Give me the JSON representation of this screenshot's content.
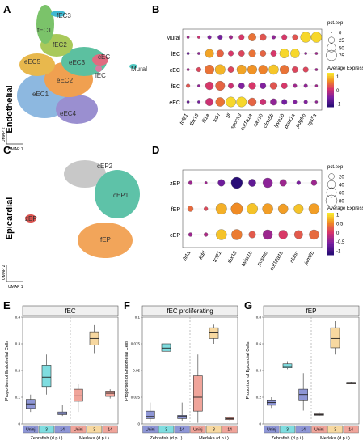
{
  "panel_letters": [
    "A",
    "B",
    "C",
    "D",
    "E",
    "F",
    "G"
  ],
  "umap_axis_labels": {
    "x": "UMAP 1",
    "y": "UMAP 2"
  },
  "panel_a": {
    "ylabel": "Endothelial",
    "clusters": [
      {
        "name": "fEC3",
        "color": "#3fb8d0"
      },
      {
        "name": "fEC1",
        "color": "#7bc36a"
      },
      {
        "name": "fEC2",
        "color": "#a9c95a"
      },
      {
        "name": "eEC5",
        "color": "#e8b84d"
      },
      {
        "name": "eEC3",
        "color": "#5cc0a0"
      },
      {
        "name": "eEC2",
        "color": "#f0a050"
      },
      {
        "name": "eEC1",
        "color": "#8db8e0"
      },
      {
        "name": "eEC4",
        "color": "#9a8fd0"
      },
      {
        "name": "cEC",
        "color": "#e06b80"
      },
      {
        "name": "lEC",
        "color": "#d87aa0"
      },
      {
        "name": "Mural",
        "color": "#4ec7c0"
      }
    ]
  },
  "panel_c": {
    "ylabel": "Epicardial",
    "clusters": [
      {
        "name": "cEP2",
        "color": "#c8c8c8"
      },
      {
        "name": "cEP1",
        "color": "#5ec2a8"
      },
      {
        "name": "fEP",
        "color": "#f2a55a"
      },
      {
        "name": "zEP",
        "color": "#d9534f"
      }
    ]
  },
  "chart_data": [
    {
      "panel": "B",
      "type": "dotplot",
      "rows": [
        "Mural",
        "lEC",
        "cEC",
        "fEC",
        "eEC"
      ],
      "genes": [
        "tcf21",
        "tbx18",
        "fli1a",
        "kdrl",
        "tll",
        "spock3",
        "col1a1a",
        "cav1b",
        "cldn5b",
        "lyve1b",
        "prox1a",
        "pdgfrb",
        "rgs5a"
      ],
      "avg_expression": [
        [
          -0.2,
          0.1,
          -0.4,
          -0.5,
          -0.2,
          0.2,
          0.6,
          0.4,
          -0.3,
          0.2,
          0.4,
          1.2,
          1.2
        ],
        [
          -0.6,
          -0.3,
          0.9,
          0.5,
          0.2,
          0.3,
          0.6,
          0.5,
          0.2,
          1.2,
          1.2,
          -0.3,
          -0.2
        ],
        [
          -0.2,
          0.3,
          0.6,
          1.0,
          0.3,
          0.9,
          0.8,
          0.7,
          1.1,
          0.6,
          0.3,
          0.3,
          -0.2
        ],
        [
          0.4,
          -0.3,
          0.2,
          0.5,
          0.1,
          -0.4,
          0.2,
          -0.4,
          0.4,
          0.2,
          -0.2,
          -0.3,
          -0.2
        ],
        [
          -0.6,
          -0.5,
          0.1,
          0.6,
          1.2,
          1.2,
          0.5,
          0.1,
          -0.3,
          -0.5,
          -0.4,
          -0.4,
          -0.3
        ]
      ],
      "pct_exp": [
        [
          5,
          5,
          10,
          15,
          10,
          20,
          40,
          30,
          10,
          20,
          20,
          75,
          75
        ],
        [
          5,
          5,
          50,
          35,
          20,
          25,
          35,
          25,
          25,
          60,
          55,
          5,
          5
        ],
        [
          5,
          15,
          60,
          70,
          25,
          60,
          60,
          55,
          65,
          55,
          25,
          20,
          5
        ],
        [
          10,
          5,
          45,
          60,
          20,
          25,
          35,
          25,
          35,
          25,
          10,
          10,
          5
        ],
        [
          5,
          5,
          40,
          55,
          70,
          70,
          45,
          25,
          30,
          20,
          10,
          10,
          5
        ]
      ],
      "size_legend": {
        "title": "pct.exp",
        "values": [
          0,
          25,
          50,
          75
        ]
      },
      "color_legend": {
        "title": "Average Expression",
        "ticks": [
          1,
          0,
          -1
        ],
        "range": [
          -1.2,
          1.3
        ]
      }
    },
    {
      "panel": "D",
      "type": "dotplot",
      "rows": [
        "zEP",
        "fEP",
        "cEP"
      ],
      "genes": [
        "fli1a",
        "kdrl",
        "tcf21",
        "tbx18",
        "twist1b",
        "postnb",
        "col12a1b",
        "cldnc",
        "jam2b"
      ],
      "avg_expression": [
        [
          -0.3,
          -0.3,
          -0.6,
          -1.1,
          -0.7,
          -0.4,
          -0.3,
          -0.5,
          -0.3
        ],
        [
          0.4,
          0.2,
          0.8,
          0.6,
          0.9,
          0.7,
          0.7,
          0.9,
          0.7
        ],
        [
          -0.3,
          -0.2,
          0.9,
          0.5,
          0.3,
          -0.3,
          0.1,
          0.3,
          0.4
        ]
      ],
      "pct_exp": [
        [
          10,
          5,
          30,
          80,
          35,
          60,
          30,
          10,
          20
        ],
        [
          20,
          10,
          75,
          85,
          75,
          70,
          60,
          55,
          70
        ],
        [
          10,
          10,
          70,
          70,
          30,
          60,
          50,
          45,
          60
        ]
      ],
      "size_legend": {
        "title": "pct.exp",
        "values": [
          20,
          40,
          60,
          80
        ]
      },
      "color_legend": {
        "title": "Average Expression",
        "ticks": [
          1.0,
          0.5,
          0.0,
          -0.5,
          -1.0
        ],
        "range": [
          -1.2,
          1.1
        ]
      }
    },
    {
      "panel": "E",
      "type": "boxplot",
      "title": "fEC",
      "ylabel": "Proportion of Endothelial Cells",
      "ylim": [
        0,
        0.4
      ],
      "yticks": [
        0,
        0.1,
        0.2,
        0.3,
        0.4
      ],
      "categories": [
        "Uninj",
        "3",
        "14",
        "Uninj",
        "3",
        "14"
      ],
      "groups": [
        "Zebrafish (d.p.i.)",
        "Medaka (d.p.i.)"
      ],
      "boxes": [
        {
          "min": 0.045,
          "q1": 0.058,
          "median": 0.075,
          "q3": 0.092,
          "max": 0.11,
          "color": "#8e96d6"
        },
        {
          "min": 0.11,
          "q1": 0.14,
          "median": 0.175,
          "q3": 0.22,
          "max": 0.26,
          "color": "#7fdde0"
        },
        {
          "min": 0.03,
          "q1": 0.035,
          "median": 0.04,
          "q3": 0.045,
          "max": 0.07,
          "color": "#8e96d6"
        },
        {
          "min": 0.045,
          "q1": 0.085,
          "median": 0.105,
          "q3": 0.13,
          "max": 0.15,
          "color": "#f0a49a"
        },
        {
          "min": 0.265,
          "q1": 0.295,
          "median": 0.32,
          "q3": 0.345,
          "max": 0.37,
          "color": "#f7d8a0"
        },
        {
          "min": 0.095,
          "q1": 0.103,
          "median": 0.115,
          "q3": 0.123,
          "max": 0.13,
          "color": "#f0a49a"
        }
      ]
    },
    {
      "panel": "F",
      "type": "boxplot",
      "title": "fEC proliferating",
      "ylabel": "Proportion of Endothelial Cells",
      "ylim": [
        0,
        0.1
      ],
      "yticks": [
        0,
        0.025,
        0.05,
        0.075,
        0.1
      ],
      "categories": [
        "Uninj",
        "3",
        "14",
        "Uninj",
        "3",
        "14"
      ],
      "groups": [
        "Zebrafish (d.p.i.)",
        "Medaka (d.p.i.)"
      ],
      "boxes": [
        {
          "min": 0.002,
          "q1": 0.005,
          "median": 0.007,
          "q3": 0.012,
          "max": 0.02,
          "color": "#8e96d6"
        },
        {
          "min": 0.068,
          "q1": 0.068,
          "median": 0.071,
          "q3": 0.075,
          "max": 0.075,
          "color": "#7fdde0"
        },
        {
          "min": 0.003,
          "q1": 0.005,
          "median": 0.007,
          "q3": 0.008,
          "max": 0.02,
          "color": "#8e96d6"
        },
        {
          "min": 0.001,
          "q1": 0.012,
          "median": 0.025,
          "q3": 0.045,
          "max": 0.065,
          "color": "#f0a49a"
        },
        {
          "min": 0.075,
          "q1": 0.08,
          "median": 0.086,
          "q3": 0.09,
          "max": 0.093,
          "color": "#f7d8a0"
        },
        {
          "min": 0.003,
          "q1": 0.004,
          "median": 0.005,
          "q3": 0.006,
          "max": 0.007,
          "color": "#f0a49a"
        }
      ]
    },
    {
      "panel": "G",
      "type": "boxplot",
      "title": "fEP",
      "ylabel": "Proportion of Epicardial Cells",
      "ylim": [
        0,
        0.8
      ],
      "yticks": [
        0,
        0.2,
        0.4,
        0.6,
        0.8
      ],
      "categories": [
        "Uninj",
        "3",
        "14",
        "Uninj",
        "3",
        "14"
      ],
      "groups": [
        "Zebrafish (d.p.i.)",
        "Medaka (d.p.i.)"
      ],
      "boxes": [
        {
          "min": 0.12,
          "q1": 0.14,
          "median": 0.16,
          "q3": 0.18,
          "max": 0.2,
          "color": "#8e96d6"
        },
        {
          "min": 0.41,
          "q1": 0.42,
          "median": 0.43,
          "q3": 0.45,
          "max": 0.47,
          "color": "#7fdde0"
        },
        {
          "min": 0.1,
          "q1": 0.18,
          "median": 0.22,
          "q3": 0.26,
          "max": 0.38,
          "color": "#8e96d6"
        },
        {
          "min": 0.06,
          "q1": 0.065,
          "median": 0.07,
          "q3": 0.075,
          "max": 0.09,
          "color": "#f0a49a"
        },
        {
          "min": 0.52,
          "q1": 0.57,
          "median": 0.64,
          "q3": 0.72,
          "max": 0.77,
          "color": "#f7d8a0"
        },
        {
          "min": 0.305,
          "q1": 0.31,
          "median": 0.31,
          "q3": 0.31,
          "max": 0.315,
          "color": "#f0a49a"
        }
      ]
    }
  ]
}
